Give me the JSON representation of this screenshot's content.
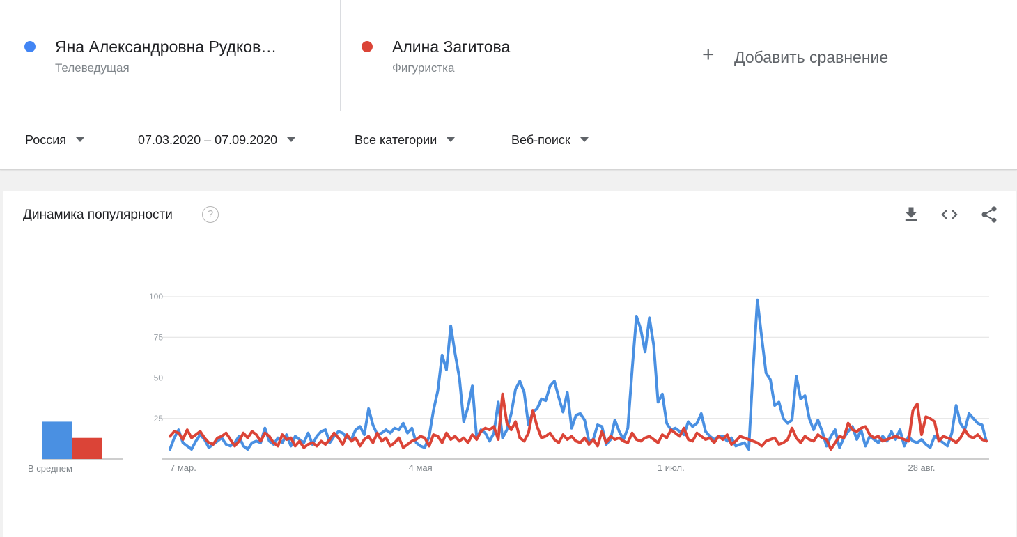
{
  "terms": [
    {
      "name": "Яна Александровна Рудков…",
      "subtitle": "Телеведущая",
      "color": "#4285f4"
    },
    {
      "name": "Алина Загитова",
      "subtitle": "Фигуристка",
      "color": "#db4437"
    }
  ],
  "add_comparison": {
    "plus": "+",
    "label": "Добавить сравнение"
  },
  "filters": {
    "region": "Россия",
    "date_range": "07.03.2020 – 07.09.2020",
    "category": "Все категории",
    "search_type": "Веб-поиск"
  },
  "card": {
    "title": "Динамика популярности",
    "help_icon": "?",
    "icons": [
      "download-icon",
      "embed-icon",
      "share-icon"
    ]
  },
  "chart_data": {
    "type": "line",
    "y_ticks": [
      100,
      75,
      50,
      25
    ],
    "ylim": [
      0,
      100
    ],
    "x_tick_labels": [
      "7 мар.",
      "4 мая",
      "1 июл.",
      "28 авг."
    ],
    "grid": true,
    "average": {
      "label": "В среднем",
      "values": [
        23,
        13
      ]
    },
    "series": [
      {
        "color": "#4a90e2",
        "values": [
          6,
          13,
          18,
          10,
          8,
          6,
          11,
          15,
          12,
          7,
          9,
          11,
          13,
          9,
          8,
          10,
          14,
          8,
          6,
          10,
          11,
          10,
          19,
          11,
          9,
          13,
          10,
          15,
          8,
          14,
          12,
          10,
          16,
          9,
          14,
          17,
          18,
          10,
          14,
          17,
          16,
          13,
          12,
          18,
          20,
          15,
          31,
          21,
          15,
          16,
          18,
          16,
          19,
          18,
          22,
          16,
          19,
          10,
          8,
          7,
          14,
          30,
          42,
          64,
          55,
          82,
          65,
          50,
          23,
          32,
          45,
          13,
          18,
          16,
          11,
          16,
          35,
          13,
          18,
          28,
          43,
          48,
          41,
          21,
          29,
          31,
          37,
          36,
          45,
          48,
          38,
          29,
          41,
          19,
          27,
          28,
          24,
          11,
          12,
          21,
          20,
          9,
          12,
          24,
          17,
          12,
          19,
          55,
          88,
          80,
          66,
          87,
          70,
          35,
          40,
          22,
          18,
          19,
          17,
          15,
          23,
          20,
          22,
          28,
          17,
          14,
          12,
          14,
          14,
          11,
          13,
          8,
          9,
          10,
          6,
          55,
          98,
          75,
          53,
          49,
          33,
          35,
          25,
          22,
          24,
          51,
          37,
          39,
          25,
          18,
          24,
          17,
          8,
          14,
          18,
          7,
          13,
          17,
          20,
          12,
          18,
          8,
          14,
          12,
          10,
          14,
          11,
          17,
          12,
          18,
          8,
          14,
          11,
          10,
          12,
          9,
          7,
          14,
          12,
          10,
          8,
          16,
          33,
          22,
          18,
          28,
          25,
          22,
          21,
          11
        ]
      },
      {
        "color": "#db4437",
        "values": [
          14,
          17,
          16,
          12,
          18,
          13,
          15,
          17,
          13,
          10,
          9,
          13,
          14,
          16,
          12,
          8,
          11,
          16,
          13,
          17,
          15,
          11,
          16,
          14,
          10,
          8,
          15,
          12,
          13,
          8,
          11,
          7,
          9,
          10,
          8,
          11,
          9,
          12,
          16,
          13,
          9,
          15,
          11,
          13,
          8,
          12,
          14,
          10,
          16,
          11,
          13,
          8,
          10,
          13,
          7,
          9,
          11,
          12,
          14,
          13,
          8,
          15,
          14,
          10,
          16,
          12,
          14,
          11,
          13,
          10,
          15,
          12,
          17,
          19,
          18,
          20,
          12,
          40,
          22,
          18,
          23,
          13,
          11,
          16,
          30,
          20,
          13,
          14,
          16,
          12,
          10,
          15,
          12,
          14,
          11,
          10,
          13,
          9,
          12,
          8,
          17,
          10,
          14,
          12,
          13,
          11,
          10,
          16,
          12,
          11,
          13,
          14,
          12,
          10,
          15,
          13,
          18,
          16,
          14,
          19,
          12,
          11,
          16,
          14,
          12,
          13,
          10,
          14,
          12,
          15,
          9,
          11,
          14,
          13,
          12,
          11,
          10,
          8,
          11,
          12,
          13,
          9,
          10,
          12,
          19,
          13,
          10,
          14,
          12,
          11,
          15,
          13,
          12,
          6,
          10,
          14,
          13,
          22,
          18,
          17,
          19,
          20,
          15,
          13,
          14,
          11,
          12,
          13,
          14,
          13,
          12,
          11,
          30,
          34,
          15,
          26,
          25,
          23,
          11,
          14,
          13,
          12,
          10,
          13,
          18,
          14,
          13,
          15,
          12,
          11
        ]
      }
    ]
  }
}
